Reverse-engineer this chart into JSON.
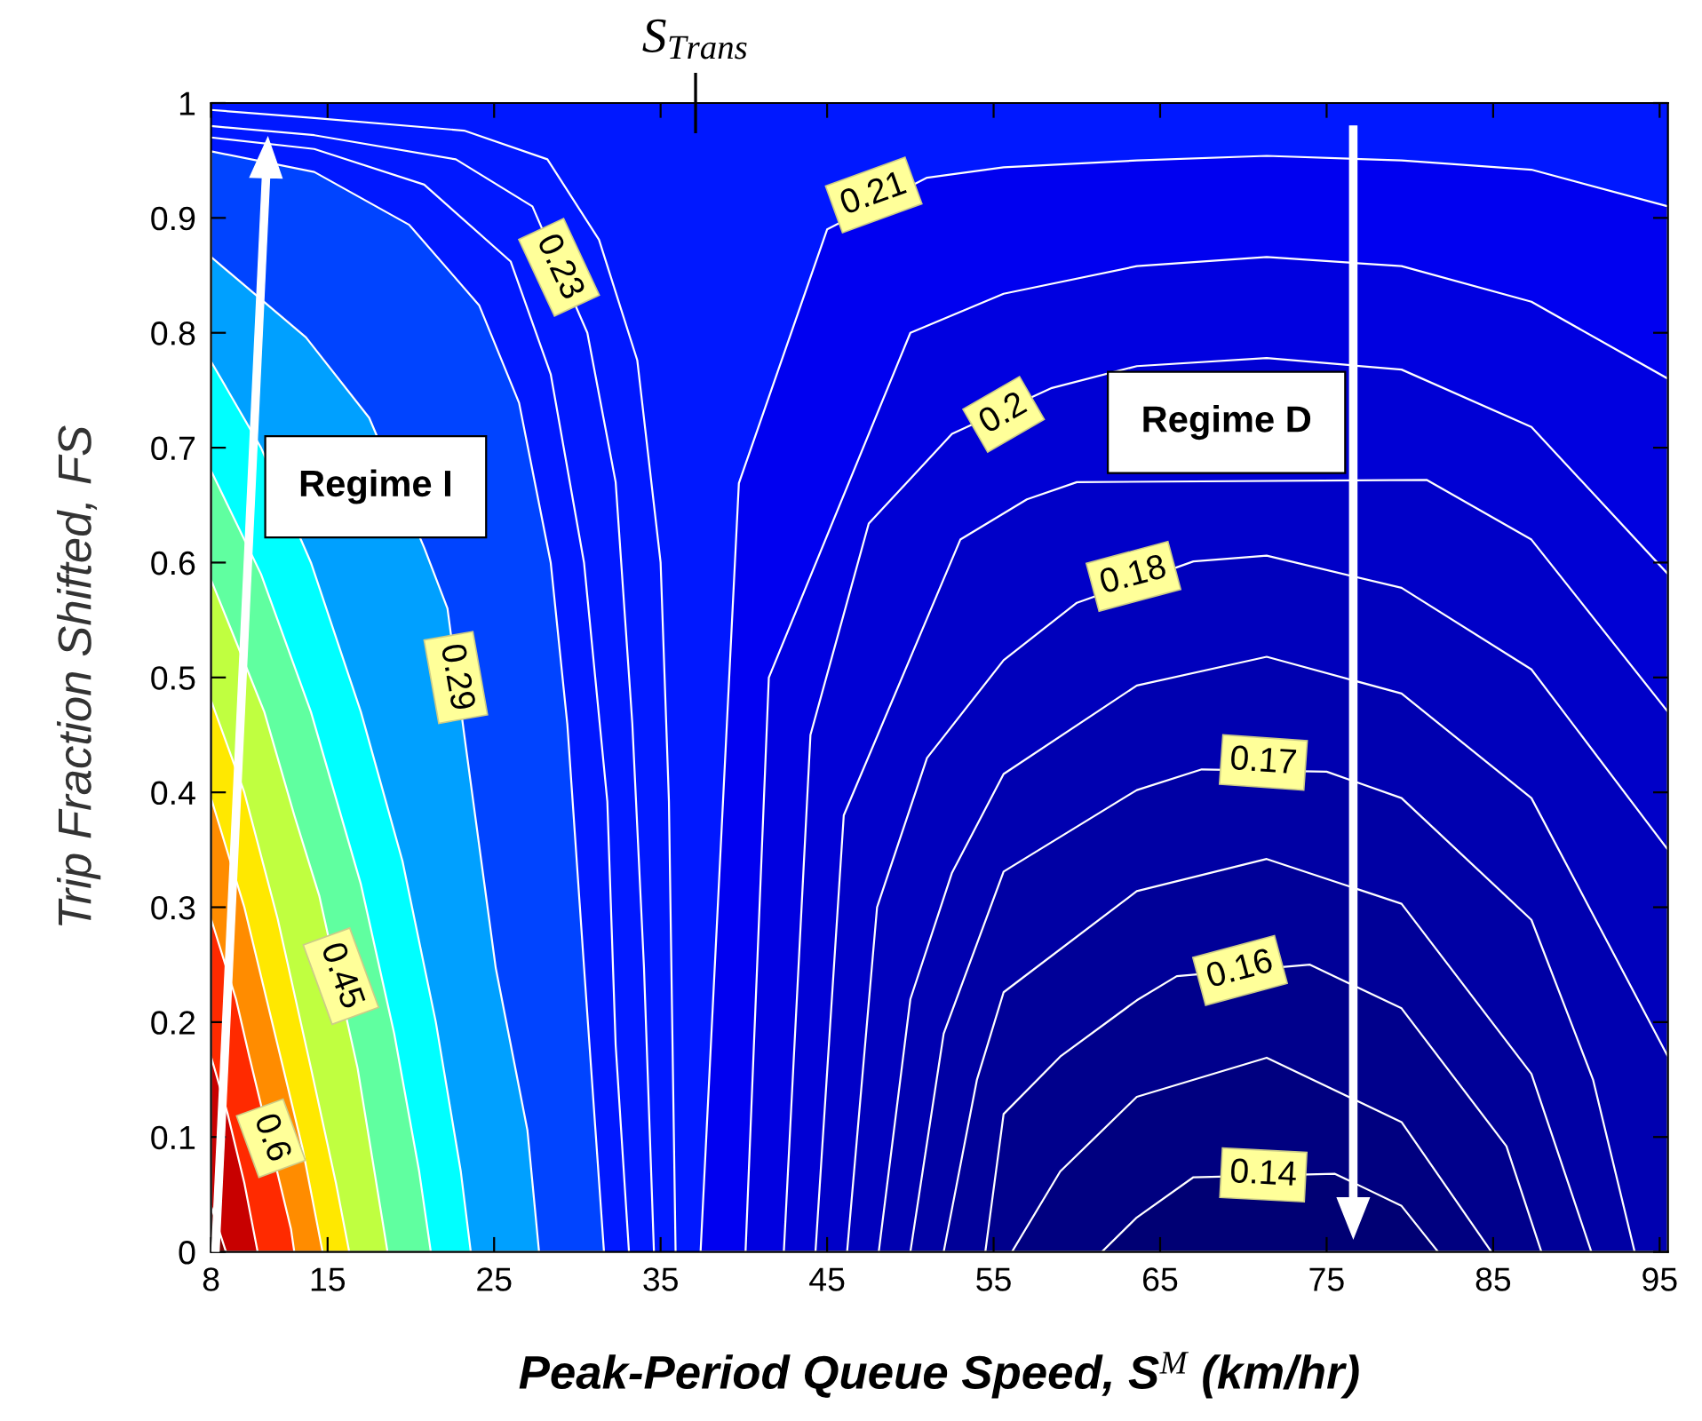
{
  "chart_data": {
    "type": "area",
    "xlabel": "Peak-Period Queue Speed, S$^{M}$ (km/hr)",
    "ylabel": "Trip Fraction Shifted, FS",
    "xlim": [
      8,
      95.5
    ],
    "ylim": [
      0,
      1
    ],
    "xticks": [
      8,
      15,
      25,
      35,
      45,
      55,
      65,
      75,
      85,
      95
    ],
    "yticks": [
      0,
      0.1,
      0.2,
      0.3,
      0.4,
      0.5,
      0.6,
      0.7,
      0.8,
      0.9,
      1
    ],
    "ref_lines": [
      {
        "axis": "x",
        "value": 37.1,
        "label": "S$_{Trans}$"
      }
    ],
    "bands": [
      {
        "axis": "y",
        "from": 0,
        "to": 1,
        "color": "#0018ff"
      }
    ],
    "annotations": [
      {
        "text": "0.23",
        "x": 28.9,
        "y": 0.857
      },
      {
        "text": "0.29",
        "x": 22.7,
        "y": 0.5
      },
      {
        "text": "0.45",
        "x": 15.8,
        "y": 0.24
      },
      {
        "text": "0.6",
        "x": 11.6,
        "y": 0.099
      },
      {
        "text": "0.21",
        "x": 47.8,
        "y": 0.92
      },
      {
        "text": "0.2",
        "x": 55.6,
        "y": 0.729
      },
      {
        "text": "0.18",
        "x": 63.4,
        "y": 0.588
      },
      {
        "text": "0.17",
        "x": 71.2,
        "y": 0.426
      },
      {
        "text": "0.16",
        "x": 69.8,
        "y": 0.245
      },
      {
        "text": "0.14",
        "x": 71.2,
        "y": 0.067
      },
      "Regime I",
      "Regime D"
    ],
    "series": [
      {
        "type": "line",
        "color": "#ffffff",
        "x": [
          8,
          14.2,
          23.2,
          28.2,
          31.3,
          33.6,
          35,
          35.5,
          35.9
        ],
        "values": [
          0.994,
          0.987,
          0.976,
          0.951,
          0.881,
          0.776,
          0.6,
          0.392,
          0
        ]
      },
      {
        "type": "line",
        "color": "#ffffff",
        "x": [
          8,
          14.2,
          22.7,
          27.3,
          30.6,
          32.3,
          33.3,
          34,
          34.6
        ],
        "values": [
          0.98,
          0.972,
          0.951,
          0.91,
          0.8,
          0.67,
          0.46,
          0.248,
          0
        ]
      },
      {
        "type": "line",
        "color": "#ffffff",
        "x": [
          8,
          14.2,
          20.8,
          26,
          28.4,
          30.4,
          31.8,
          32.3,
          33.1
        ],
        "values": [
          0.97,
          0.96,
          0.929,
          0.862,
          0.764,
          0.6,
          0.392,
          0.18,
          0
        ]
      },
      {
        "color": "#0044ff",
        "x": [
          8,
          14.2,
          19.9,
          24.1,
          26.5,
          28.4,
          29.4,
          30.4,
          31.6
        ],
        "values": [
          0.958,
          0.94,
          0.894,
          0.824,
          0.739,
          0.6,
          0.459,
          0.248,
          0
        ]
      },
      {
        "color": "#00a0ff",
        "x": [
          8,
          13.7,
          17.5,
          20.8,
          22.2,
          23.3,
          25.1,
          27,
          27.7
        ],
        "values": [
          0.866,
          0.796,
          0.726,
          0.613,
          0.56,
          0.44,
          0.247,
          0.106,
          0
        ]
      },
      {
        "color": "#00ffff",
        "x": [
          8,
          11,
          14,
          17,
          19.5,
          21.5,
          23,
          23.6
        ],
        "values": [
          0.775,
          0.7,
          0.6,
          0.47,
          0.34,
          0.2,
          0.07,
          0
        ]
      },
      {
        "color": "#60ffa0",
        "x": [
          8,
          11,
          14,
          17,
          19,
          20.5,
          21.2
        ],
        "values": [
          0.68,
          0.59,
          0.47,
          0.32,
          0.19,
          0.07,
          0
        ]
      },
      {
        "color": "#c0ff40",
        "x": [
          8,
          11.2,
          13,
          14.5,
          16.8,
          18.6
        ],
        "values": [
          0.585,
          0.47,
          0.38,
          0.31,
          0.16,
          0
        ]
      },
      {
        "color": "#ffe800",
        "x": [
          8,
          10,
          12,
          14,
          15.5,
          16.3
        ],
        "values": [
          0.48,
          0.4,
          0.29,
          0.16,
          0.06,
          0
        ]
      },
      {
        "color": "#ff8c00",
        "x": [
          8,
          10,
          12,
          13.5,
          14.7
        ],
        "values": [
          0.395,
          0.3,
          0.18,
          0.09,
          0
        ]
      },
      {
        "color": "#ff2a00",
        "x": [
          8,
          9.5,
          10.3,
          12.8,
          13
        ],
        "values": [
          0.29,
          0.22,
          0.17,
          0.02,
          0
        ]
      },
      {
        "color": "#c80000",
        "x": [
          8,
          9,
          10,
          10.8
        ],
        "values": [
          0.17,
          0.12,
          0.06,
          0
        ]
      },
      {
        "color": "#800000",
        "x": [
          8,
          8.9
        ],
        "values": [
          0.04,
          0
        ]
      },
      {
        "color": "#0000f0",
        "x": [
          37.4,
          39.7,
          45,
          51,
          55.6,
          63.6,
          71.4,
          79.5,
          87.3,
          95.5
        ],
        "values": [
          0,
          0.669,
          0.89,
          0.935,
          0.944,
          0.95,
          0.954,
          0.95,
          0.942,
          0.91
        ]
      },
      {
        "color": "#0000e0",
        "x": [
          40.1,
          41.5,
          50,
          55.6,
          63.6,
          71.4,
          79.5,
          87.3,
          95.5
        ],
        "values": [
          0,
          0.5,
          0.8,
          0.834,
          0.858,
          0.866,
          0.858,
          0.827,
          0.76
        ]
      },
      {
        "color": "#0000d4",
        "x": [
          42.4,
          44,
          47.5,
          52.5,
          58.5,
          63.6,
          71.4,
          79.5,
          87.3,
          95.5
        ],
        "values": [
          0,
          0.45,
          0.634,
          0.712,
          0.752,
          0.771,
          0.778,
          0.768,
          0.718,
          0.59
        ]
      },
      {
        "color": "#0000c8",
        "x": [
          44.3,
          46,
          53,
          57,
          60,
          81,
          87.3,
          95.5
        ],
        "values": [
          0,
          0.38,
          0.62,
          0.655,
          0.67,
          0.672,
          0.62,
          0.47
        ]
      },
      {
        "color": "#0000bc",
        "x": [
          46.2,
          48,
          51,
          55.6,
          60,
          67,
          71.4,
          79.5,
          87.3,
          95.5
        ],
        "values": [
          0,
          0.3,
          0.43,
          0.515,
          0.565,
          0.601,
          0.606,
          0.578,
          0.507,
          0.35
        ]
      },
      {
        "color": "#0000b0",
        "x": [
          48.1,
          50,
          52.5,
          55.6,
          63.6,
          71.4,
          79.5,
          87.3,
          95.5
        ],
        "values": [
          0,
          0.22,
          0.33,
          0.416,
          0.493,
          0.518,
          0.486,
          0.395,
          0.17
        ]
      },
      {
        "color": "#0000a4",
        "x": [
          50,
          52,
          55.6,
          63.6,
          67.5,
          75,
          79.5,
          87.3,
          91,
          93.5
        ],
        "values": [
          0,
          0.19,
          0.331,
          0.402,
          0.42,
          0.418,
          0.395,
          0.289,
          0.15,
          0
        ]
      },
      {
        "color": "#000098",
        "x": [
          52,
          54,
          55.6,
          63.6,
          71.4,
          79.5,
          87.3,
          90.9
        ],
        "values": [
          0,
          0.15,
          0.226,
          0.314,
          0.342,
          0.303,
          0.155,
          0
        ]
      },
      {
        "color": "#00008c",
        "x": [
          54.5,
          55.6,
          59,
          63.6,
          66,
          74,
          79.5,
          85.8,
          87.9
        ],
        "values": [
          0,
          0.12,
          0.17,
          0.219,
          0.24,
          0.25,
          0.212,
          0.092,
          0
        ]
      },
      {
        "color": "#000080",
        "x": [
          56.1,
          59,
          63.6,
          71.4,
          79.5,
          84.9
        ],
        "values": [
          0,
          0.07,
          0.135,
          0.169,
          0.113,
          0
        ]
      },
      {
        "color": "#000074",
        "x": [
          61.5,
          63.6,
          67,
          75.5,
          79.5,
          81.7
        ],
        "values": [
          0,
          0.03,
          0.065,
          0.068,
          0.04,
          0
        ]
      }
    ]
  }
}
